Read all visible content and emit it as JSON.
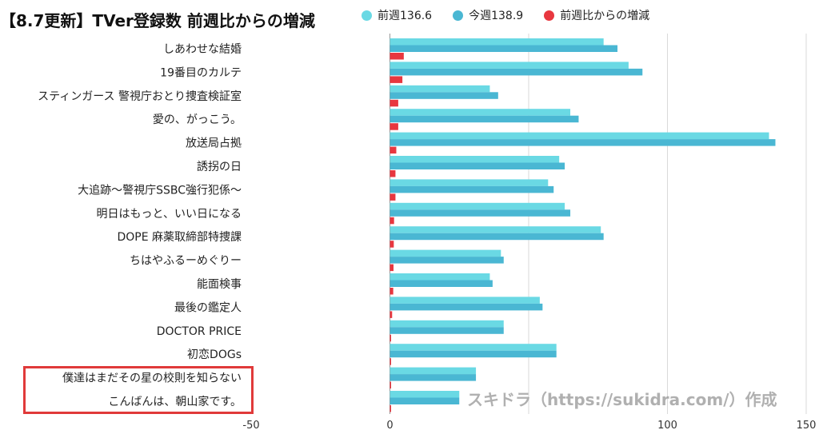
{
  "chart_data": {
    "type": "bar",
    "orientation": "horizontal",
    "title": "【8.7更新】TVer登録数 前週比からの増減",
    "categories": [
      "しあわせな結婚",
      "19番目のカルテ",
      "スティンガース 警視庁おとり捜査検証室",
      "愛の、がっこう。",
      "放送局占拠",
      "誘拐の日",
      "大追跡～警視庁SSBC強行犯係～",
      "明日はもっと、いい日になる",
      "DOPE 麻薬取締部特捜課",
      "ちはやふるーめぐりー",
      "能面検事",
      "最後の鑑定人",
      "DOCTOR PRICE",
      "初恋DOGs",
      "僕達はまだその星の校則を知らない",
      "こんばんは、朝山家です。"
    ],
    "series": [
      {
        "name": "前週136.6",
        "color": "#6ad9e4",
        "values": [
          77,
          86,
          36,
          65,
          136.6,
          61,
          57,
          63,
          76,
          40,
          36,
          54,
          41,
          60,
          31,
          25
        ]
      },
      {
        "name": "今週138.9",
        "color": "#4ab7d3",
        "values": [
          82,
          91,
          39,
          68,
          138.9,
          63,
          59,
          65,
          77,
          41,
          37,
          55,
          41,
          60,
          31,
          25
        ]
      },
      {
        "name": "前週比からの増減",
        "color": "#e8373f",
        "values": [
          5,
          4.5,
          3,
          3,
          2.3,
          2,
          2,
          1.5,
          1.4,
          1.3,
          1.2,
          0.8,
          0.3,
          0.1,
          0.1,
          0.1
        ]
      }
    ],
    "xlim": [
      -50,
      150
    ],
    "xticks": [
      -50,
      0,
      50,
      100,
      150
    ],
    "xtick_labels": [
      "-50",
      "0",
      "",
      "100",
      "150"
    ],
    "grid": true,
    "legend_position": "top",
    "highlighted_categories": [
      "僕達はまだその星の校則を知らない",
      "こんばんは、朝山家です。"
    ],
    "annotation": "スキドラ（https://sukidra.com/）作成"
  }
}
